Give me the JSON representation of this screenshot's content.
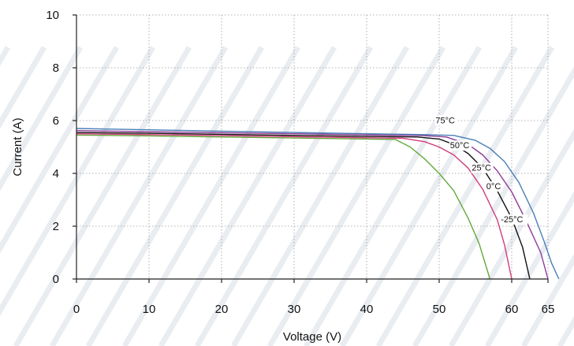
{
  "chart_data": {
    "type": "line",
    "title": "",
    "xlabel": "Voltage (V)",
    "ylabel": "Current (A)",
    "xlim": [
      0,
      65
    ],
    "ylim": [
      0,
      10
    ],
    "x_ticks": [
      0,
      10,
      20,
      30,
      40,
      50,
      60,
      65
    ],
    "y_ticks": [
      0,
      2,
      4,
      6,
      8,
      10
    ],
    "grid": true,
    "series": [
      {
        "name": "75°C",
        "color": "#63a83a",
        "points": [
          [
            0,
            5.45
          ],
          [
            10,
            5.42
          ],
          [
            20,
            5.38
          ],
          [
            30,
            5.34
          ],
          [
            40,
            5.3
          ],
          [
            44,
            5.28
          ],
          [
            46,
            5.0
          ],
          [
            48,
            4.55
          ],
          [
            50,
            4.0
          ],
          [
            52,
            3.35
          ],
          [
            54,
            2.3
          ],
          [
            55.5,
            1.35
          ],
          [
            57,
            0
          ]
        ]
      },
      {
        "name": "50°C",
        "color": "#d23c7a",
        "points": [
          [
            0,
            5.5
          ],
          [
            10,
            5.47
          ],
          [
            20,
            5.43
          ],
          [
            30,
            5.39
          ],
          [
            40,
            5.35
          ],
          [
            45,
            5.33
          ],
          [
            48,
            5.2
          ],
          [
            50,
            5.0
          ],
          [
            52,
            4.7
          ],
          [
            54,
            4.2
          ],
          [
            56,
            3.4
          ],
          [
            58,
            2.25
          ],
          [
            59,
            1.3
          ],
          [
            60,
            0
          ]
        ]
      },
      {
        "name": "25°C",
        "color": "#111111",
        "points": [
          [
            0,
            5.55
          ],
          [
            10,
            5.52
          ],
          [
            20,
            5.48
          ],
          [
            30,
            5.44
          ],
          [
            40,
            5.4
          ],
          [
            47,
            5.38
          ],
          [
            50,
            5.3
          ],
          [
            52,
            5.1
          ],
          [
            54,
            4.75
          ],
          [
            56,
            4.2
          ],
          [
            58,
            3.35
          ],
          [
            60,
            2.3
          ],
          [
            61.5,
            1.2
          ],
          [
            62.5,
            0
          ]
        ]
      },
      {
        "name": "0°C",
        "color": "#8e3a96",
        "points": [
          [
            0,
            5.62
          ],
          [
            10,
            5.58
          ],
          [
            20,
            5.54
          ],
          [
            30,
            5.5
          ],
          [
            40,
            5.46
          ],
          [
            48,
            5.43
          ],
          [
            51,
            5.38
          ],
          [
            54,
            5.1
          ],
          [
            56,
            4.7
          ],
          [
            58,
            4.1
          ],
          [
            60,
            3.3
          ],
          [
            62,
            2.2
          ],
          [
            64,
            1.0
          ],
          [
            65,
            0
          ]
        ]
      },
      {
        "name": "-25°C",
        "color": "#4a7fb6",
        "points": [
          [
            0,
            5.7
          ],
          [
            10,
            5.65
          ],
          [
            20,
            5.6
          ],
          [
            30,
            5.55
          ],
          [
            40,
            5.5
          ],
          [
            48,
            5.47
          ],
          [
            52,
            5.44
          ],
          [
            55,
            5.25
          ],
          [
            57,
            4.95
          ],
          [
            59,
            4.45
          ],
          [
            61,
            3.65
          ],
          [
            63,
            2.5
          ],
          [
            64.5,
            1.4
          ],
          [
            65.5,
            0.6
          ],
          [
            66.5,
            0
          ]
        ]
      }
    ],
    "annotations": [
      {
        "text": "75°C",
        "x": 49.5,
        "y": 5.9
      },
      {
        "text": "50°C",
        "x": 51.5,
        "y": 4.95
      },
      {
        "text": "25°C",
        "x": 54.5,
        "y": 4.1
      },
      {
        "text": "0°C",
        "x": 56.5,
        "y": 3.4
      },
      {
        "text": "-25°C",
        "x": 58.5,
        "y": 2.15
      }
    ]
  }
}
